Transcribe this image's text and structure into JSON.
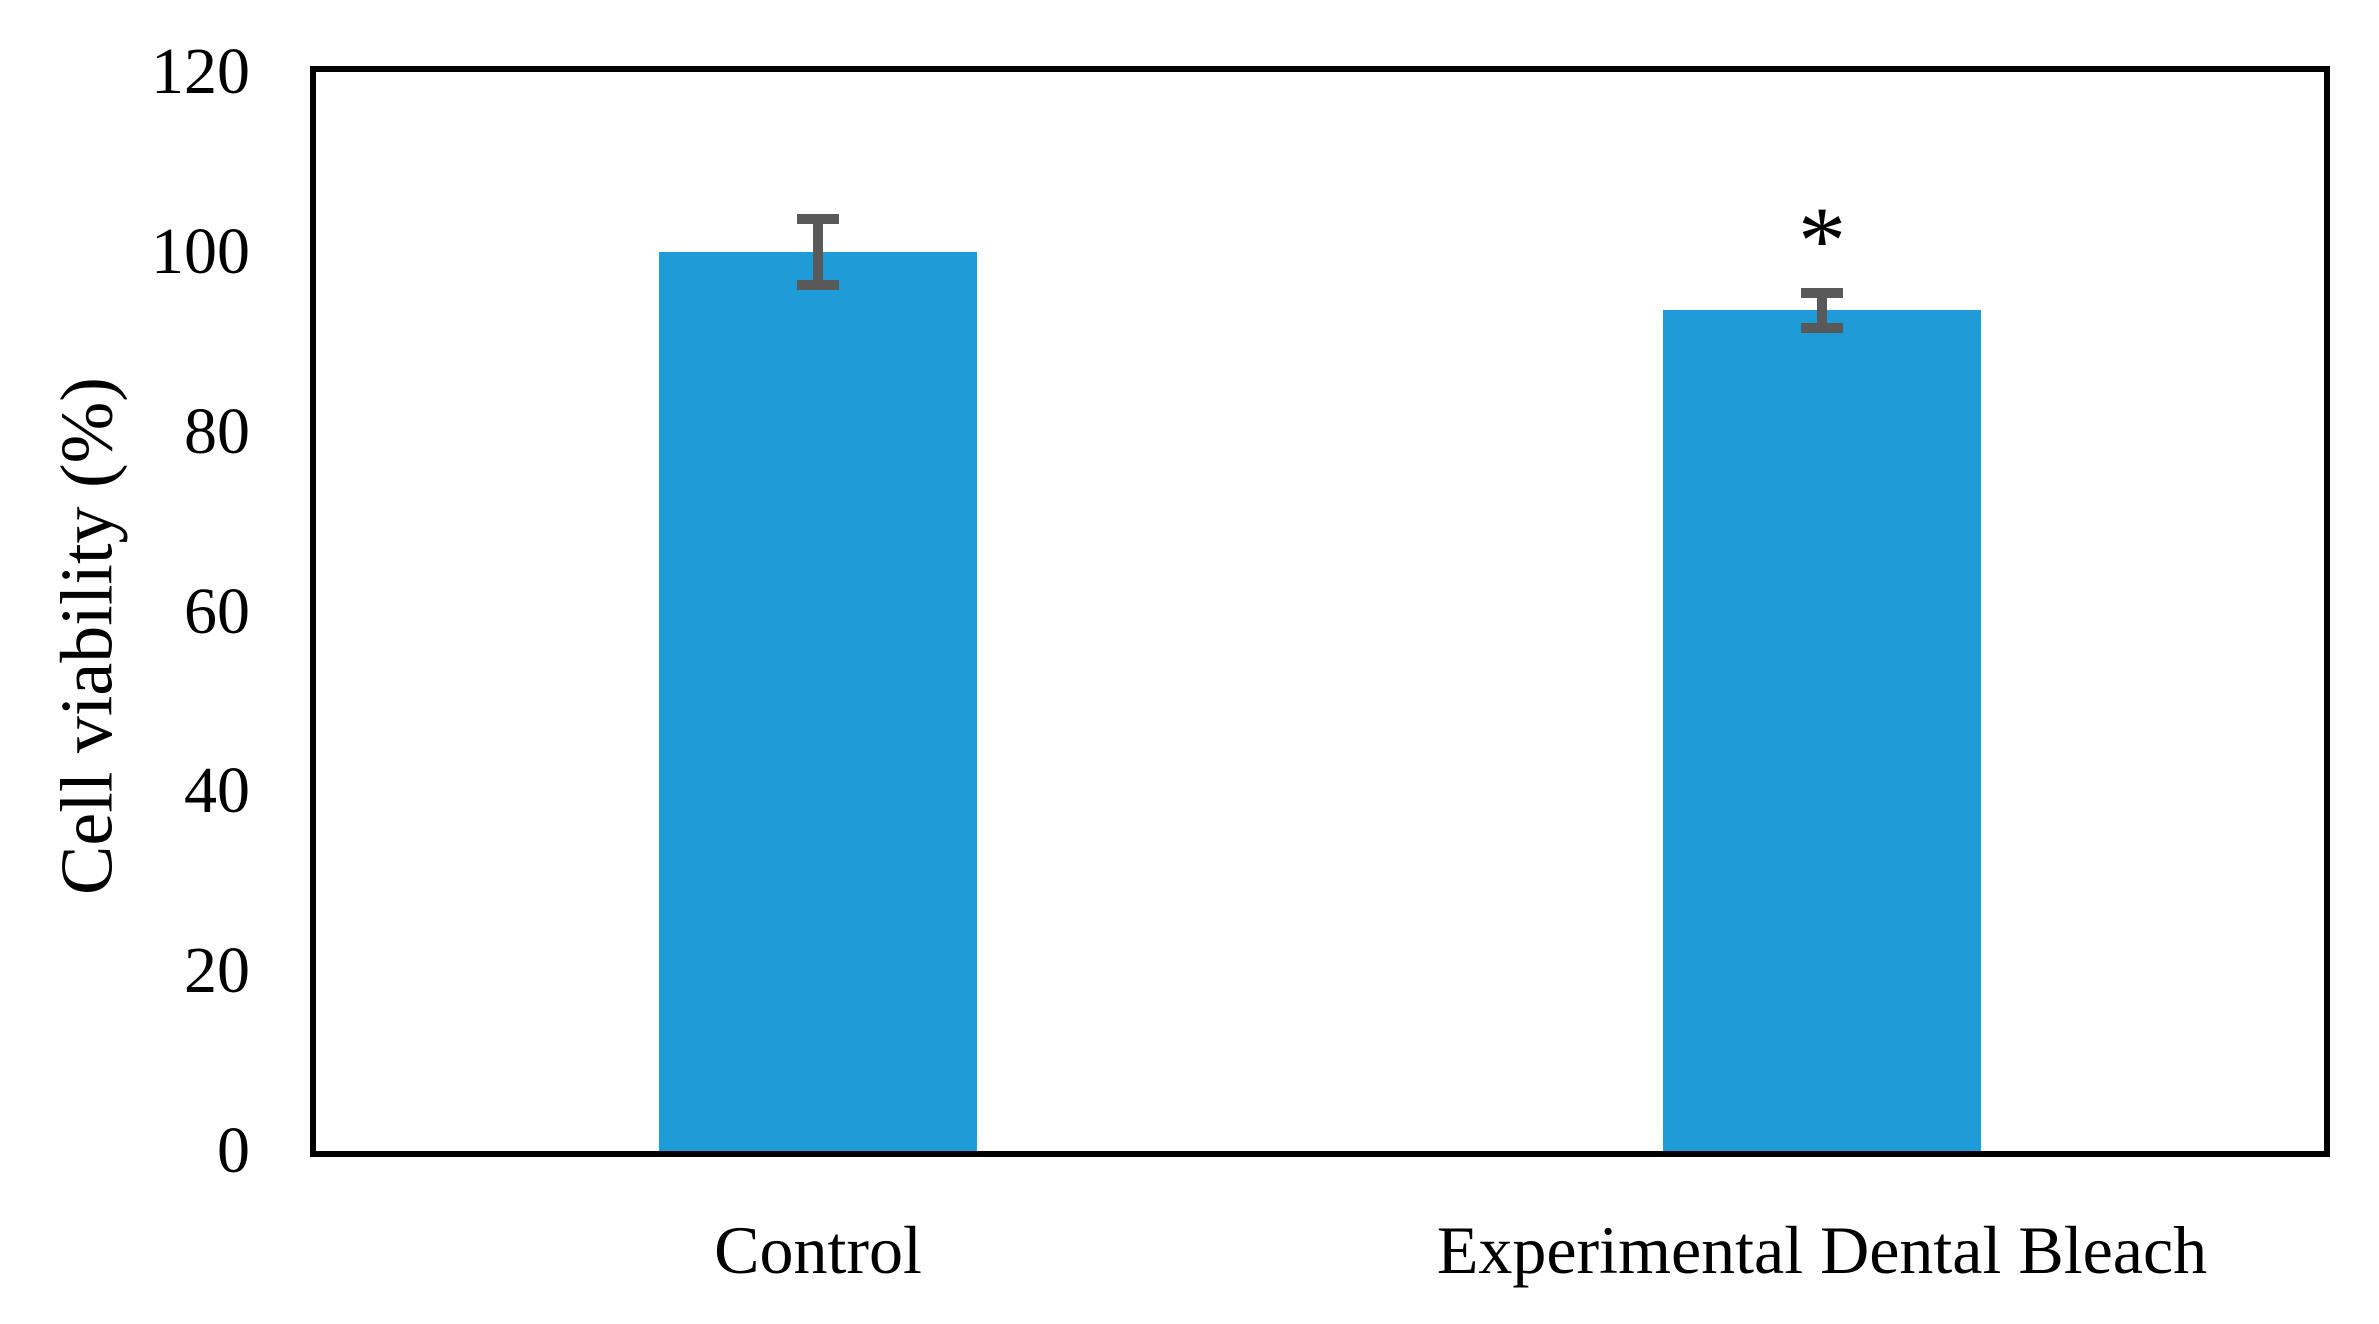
{
  "chart_data": {
    "type": "bar",
    "title": "",
    "categories": [
      "Control",
      "Experimental Dental Bleach"
    ],
    "values": [
      100,
      93.5
    ],
    "error_bars": [
      4.2,
      2.5
    ],
    "significance_markers": [
      "",
      "*"
    ],
    "xlabel": "",
    "ylabel": "Cell viability (%)",
    "ylim": [
      0,
      120
    ],
    "yticks": [
      0,
      20,
      40,
      60,
      80,
      100,
      120
    ],
    "grid": false,
    "legend": false,
    "bar_color": "#1E9CD8",
    "error_bar_color": "#595959",
    "axis_color": "#000000",
    "background_color": "#FFFFFF"
  }
}
